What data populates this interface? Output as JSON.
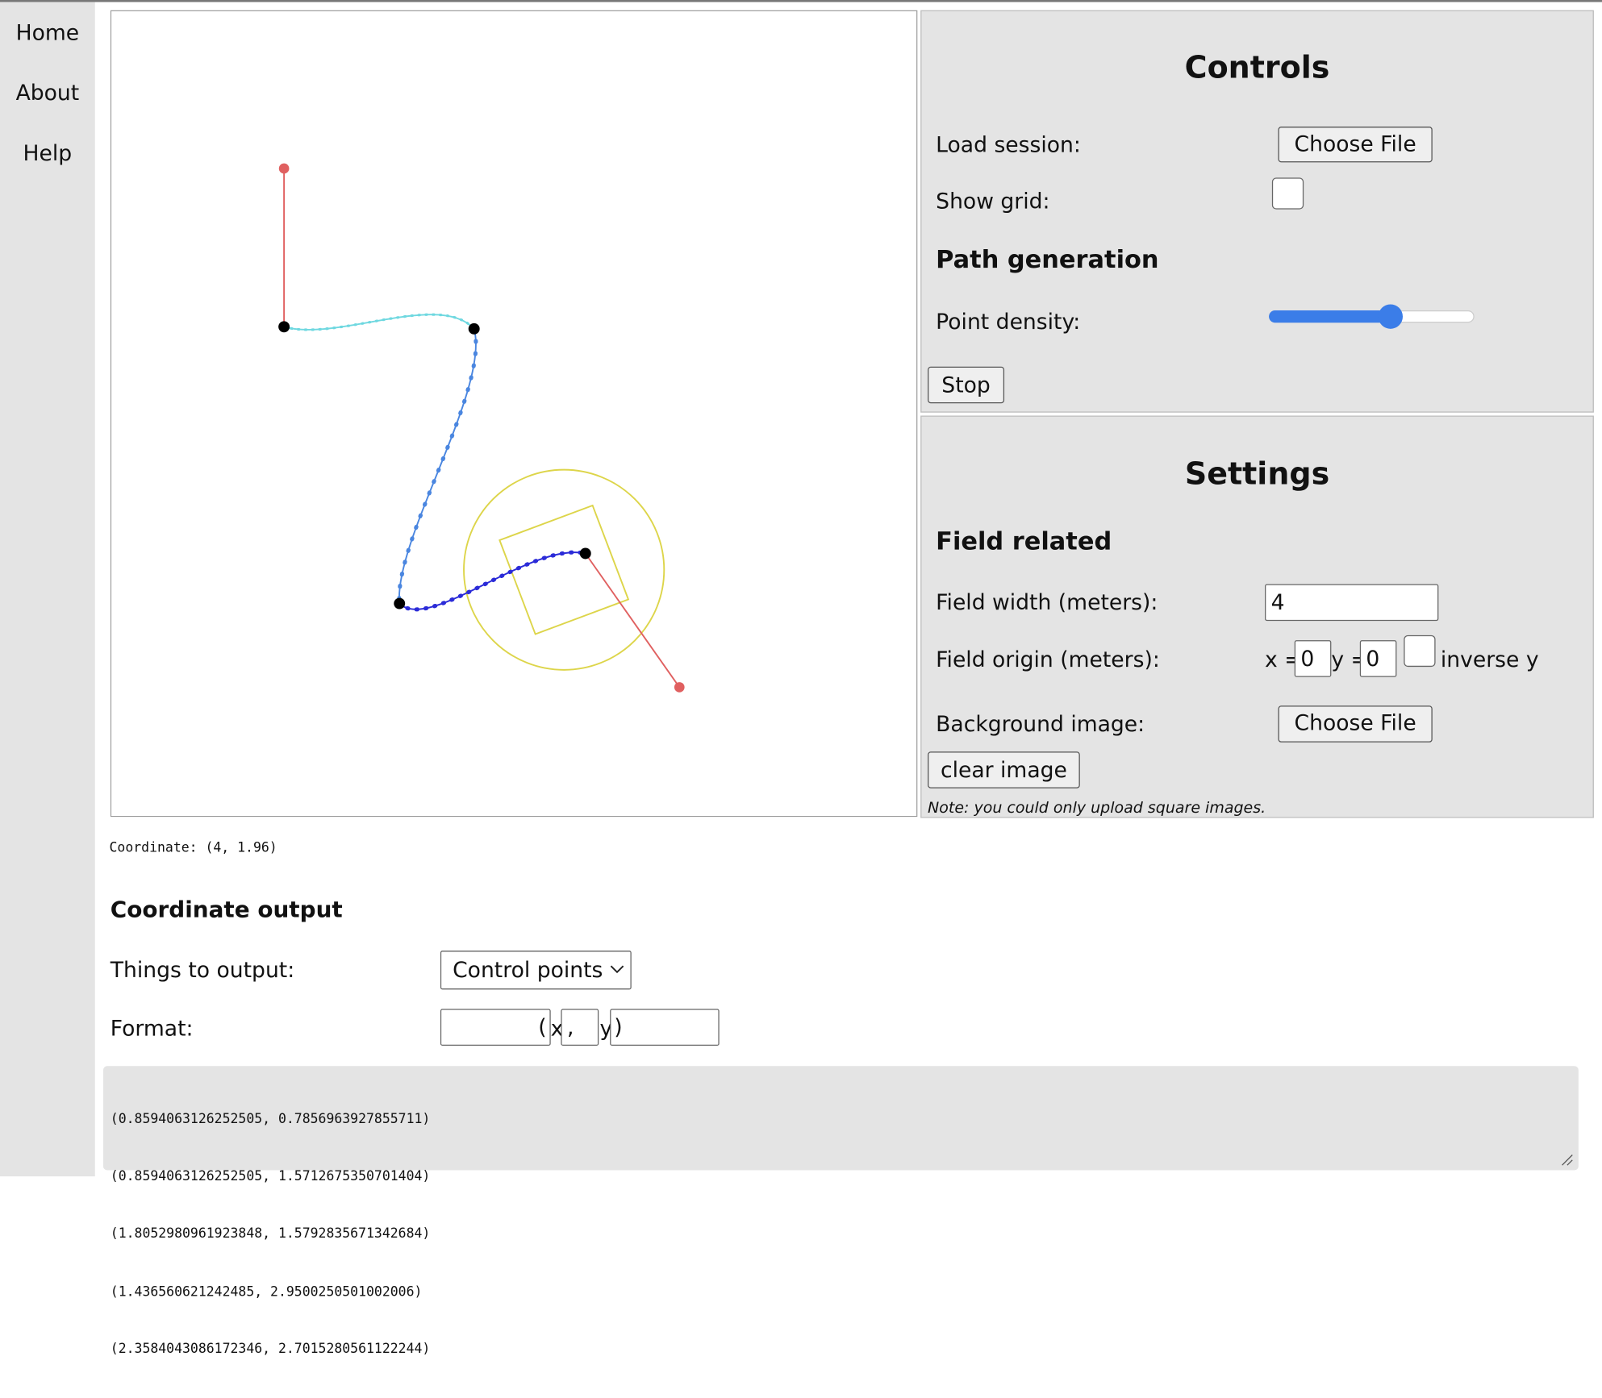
{
  "nav": [
    "Home",
    "About",
    "Help"
  ],
  "controls": {
    "title": "Controls",
    "load_session": "Load session:",
    "choose_file": "Choose File",
    "show_grid": "Show grid:",
    "path_generation": "Path generation",
    "point_density": "Point density:",
    "stop": "Stop"
  },
  "settings": {
    "title": "Settings",
    "field_related": "Field related",
    "field_width_label": "Field width (meters):",
    "field_width_value": "4",
    "field_origin_label": "Field origin (meters):",
    "x_label": "x =",
    "x_value": "0",
    "y_label": "y =",
    "y_value": "0",
    "inverse_y": "inverse y",
    "background_image": "Background image:",
    "choose_file": "Choose File",
    "clear_image": "clear image",
    "note": "Note: you could only upload square images."
  },
  "coordinate": "Coordinate: (4, 1.96)",
  "output": {
    "title": "Coordinate output",
    "things_label": "Things to output:",
    "things_value": "Control points",
    "format_label": "Format:",
    "format_prefix": "(",
    "format_x": "x",
    "format_separator": ",",
    "format_y": "y",
    "format_suffix": ")",
    "lines": [
      "(0.8594063126252505, 0.7856963927855711)",
      "(0.8594063126252505, 1.5712675350701404)",
      "(1.8052980961923848, 1.5792835671342684)",
      "(1.436560621242485, 2.9500250501002006)",
      "(2.3584043086172346, 2.7015280561122244)"
    ]
  }
}
